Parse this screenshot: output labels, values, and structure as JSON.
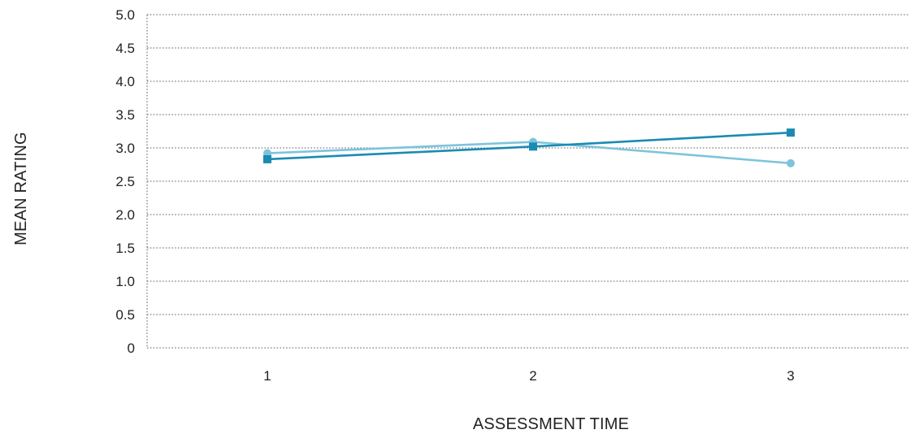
{
  "chart_data": {
    "type": "line",
    "title": "",
    "xlabel": "ASSESSMENT TIME",
    "ylabel": "MEAN RATING",
    "categories": [
      "1",
      "2",
      "3"
    ],
    "ylim": [
      0,
      5.0
    ],
    "yticks": [
      "0",
      "0.5",
      "1.0",
      "1.5",
      "2.0",
      "2.5",
      "3.0",
      "3.5",
      "4.0",
      "4.5",
      "5.0"
    ],
    "grid": true,
    "legend": "none",
    "series": [
      {
        "values": [
          2.92,
          3.09,
          2.77
        ],
        "color": "#7ec3dd",
        "marker": "circle"
      },
      {
        "values": [
          2.83,
          3.02,
          3.23
        ],
        "color": "#1a8bb3",
        "marker": "square"
      }
    ]
  }
}
